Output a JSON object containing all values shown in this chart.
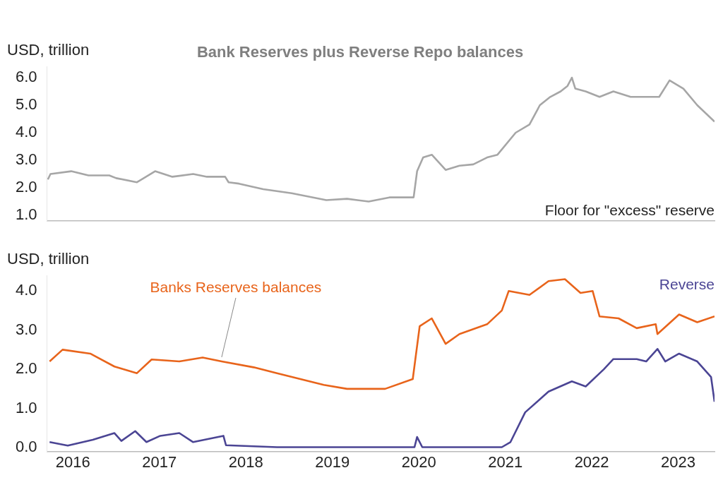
{
  "chart_data": [
    {
      "type": "line",
      "title": "Bank Reserves plus Reverse Repo balances",
      "ylabel": "USD, trillion",
      "tick_labels": "y",
      "marker": "none",
      "xlim": [
        2015.7,
        2023.42
      ],
      "ylim": [
        0.8,
        6.4
      ],
      "yticks": [
        {
          "value": 1,
          "label": "1.0"
        },
        {
          "value": 2,
          "label": "2.0"
        },
        {
          "value": 3,
          "label": "3.0"
        },
        {
          "value": 4,
          "label": "4.0"
        },
        {
          "value": 5,
          "label": "5.0"
        },
        {
          "value": 6,
          "label": "6.0"
        }
      ],
      "annotations": [
        "Floor for \"excess\" reserve"
      ],
      "series": [
        {
          "color": "#a6a6a6",
          "x": [
            2015.71,
            2015.74,
            2015.98,
            2016.18,
            2016.42,
            2016.5,
            2016.74,
            2016.95,
            2017.15,
            2017.39,
            2017.55,
            2017.76,
            2017.8,
            2017.92,
            2018.2,
            2018.53,
            2018.93,
            2019.17,
            2019.42,
            2019.66,
            2019.94,
            2019.98,
            2020.05,
            2020.15,
            2020.31,
            2020.47,
            2020.63,
            2020.79,
            2020.91,
            2021.12,
            2021.28,
            2021.4,
            2021.52,
            2021.64,
            2021.72,
            2021.77,
            2021.81,
            2021.93,
            2022.09,
            2022.25,
            2022.45,
            2022.62,
            2022.78,
            2022.9,
            2023.06,
            2023.22,
            2023.42
          ],
          "values": [
            2.3,
            2.5,
            2.6,
            2.45,
            2.45,
            2.35,
            2.2,
            2.6,
            2.4,
            2.5,
            2.4,
            2.4,
            2.2,
            2.15,
            1.95,
            1.8,
            1.55,
            1.6,
            1.5,
            1.65,
            1.65,
            2.6,
            3.1,
            3.2,
            2.65,
            2.8,
            2.85,
            3.1,
            3.2,
            4.0,
            4.3,
            5.0,
            5.3,
            5.5,
            5.7,
            6.0,
            5.6,
            5.5,
            5.3,
            5.5,
            5.3,
            5.3,
            5.3,
            5.9,
            5.6,
            5.0,
            4.4
          ]
        }
      ]
    },
    {
      "type": "line",
      "ylabel": "USD, trillion",
      "marker": "none",
      "xlim": [
        2015.7,
        2023.42
      ],
      "xticks": [
        2016,
        2017,
        2018,
        2019,
        2020,
        2021,
        2022,
        2023
      ],
      "ylim": [
        -0.1,
        4.4
      ],
      "yticks": [
        {
          "value": 0,
          "label": "0.0"
        },
        {
          "value": 1,
          "label": "1.0"
        },
        {
          "value": 2,
          "label": "2.0"
        },
        {
          "value": 3,
          "label": "3.0"
        },
        {
          "value": 4,
          "label": "4.0"
        }
      ],
      "series": [
        {
          "name": "Banks Reserves balances",
          "color": "#e8641b",
          "x": [
            2015.73,
            2015.88,
            2016.2,
            2016.48,
            2016.74,
            2016.91,
            2017.23,
            2017.5,
            2017.72,
            2018.09,
            2018.36,
            2018.9,
            2019.17,
            2019.61,
            2019.93,
            2020.01,
            2020.15,
            2020.31,
            2020.47,
            2020.79,
            2020.96,
            2021.04,
            2021.28,
            2021.5,
            2021.69,
            2021.87,
            2022.01,
            2022.09,
            2022.31,
            2022.52,
            2022.74,
            2022.76,
            2023.01,
            2023.22,
            2023.42
          ],
          "values": [
            2.2,
            2.5,
            2.4,
            2.07,
            1.9,
            2.25,
            2.2,
            2.3,
            2.2,
            2.05,
            1.9,
            1.6,
            1.5,
            1.5,
            1.75,
            3.1,
            3.3,
            2.65,
            2.9,
            3.15,
            3.5,
            4.0,
            3.9,
            4.25,
            4.3,
            3.95,
            4.0,
            3.35,
            3.3,
            3.05,
            3.15,
            2.9,
            3.4,
            3.2,
            3.35
          ]
        },
        {
          "name": "Reverse",
          "color": "#4b4594",
          "x": [
            2015.73,
            2015.94,
            2016.23,
            2016.48,
            2016.56,
            2016.72,
            2016.85,
            2017.01,
            2017.23,
            2017.39,
            2017.74,
            2017.77,
            2018.36,
            2019.95,
            2019.98,
            2020.04,
            2020.96,
            2021.06,
            2021.23,
            2021.5,
            2021.77,
            2021.93,
            2022.14,
            2022.25,
            2022.52,
            2022.63,
            2022.76,
            2022.85,
            2023.01,
            2023.22,
            2023.38,
            2023.42
          ],
          "values": [
            0.14,
            0.05,
            0.2,
            0.37,
            0.17,
            0.42,
            0.14,
            0.3,
            0.37,
            0.14,
            0.3,
            0.06,
            0.01,
            0.01,
            0.27,
            0.01,
            0.01,
            0.14,
            0.9,
            1.43,
            1.69,
            1.56,
            2.0,
            2.26,
            2.26,
            2.2,
            2.52,
            2.2,
            2.4,
            2.2,
            1.8,
            1.17
          ]
        }
      ]
    }
  ]
}
